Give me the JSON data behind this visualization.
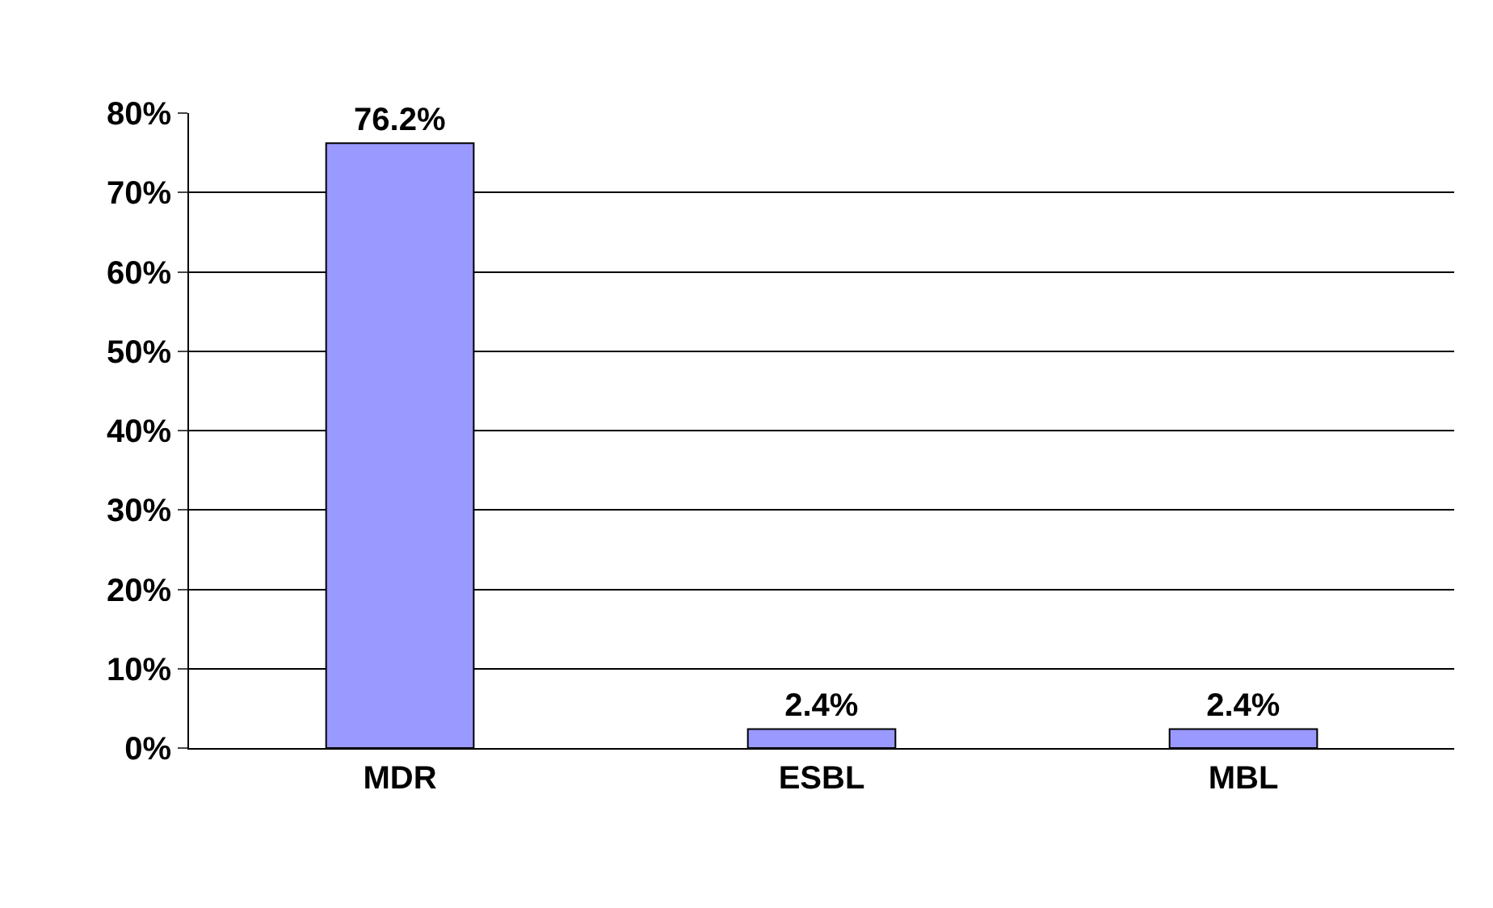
{
  "chart_data": {
    "type": "bar",
    "categories": [
      "MDR",
      "ESBL",
      "MBL"
    ],
    "values": [
      76.2,
      2.4,
      2.4
    ],
    "value_labels": [
      "76.2%",
      "2.4%",
      "2.4%"
    ],
    "color": "#9999ff",
    "ylim": [
      0,
      80
    ],
    "yticks": [
      {
        "value": 0,
        "label": "0%"
      },
      {
        "value": 10,
        "label": "10%"
      },
      {
        "value": 20,
        "label": "20%"
      },
      {
        "value": 30,
        "label": "30%"
      },
      {
        "value": 40,
        "label": "40%"
      },
      {
        "value": 50,
        "label": "50%"
      },
      {
        "value": 60,
        "label": "60%"
      },
      {
        "value": 70,
        "label": "70%"
      },
      {
        "value": 80,
        "label": "80%"
      }
    ],
    "grid": "y",
    "legend": false
  }
}
